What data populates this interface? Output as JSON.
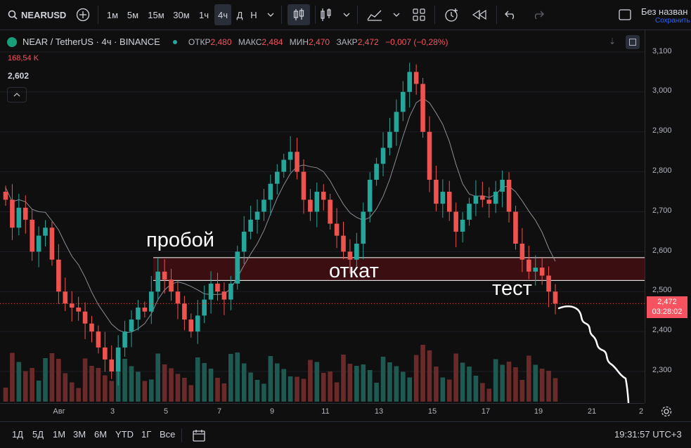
{
  "toolbar": {
    "symbol": "NEARUSD",
    "intervals": [
      "1м",
      "5м",
      "15м",
      "30м",
      "1ч",
      "4ч",
      "Д",
      "Н"
    ],
    "active_interval": "4ч",
    "layout_name": "Без назван",
    "save_label": "Сохранить"
  },
  "legend": {
    "title": "NEAR / TetherUS · 4ч · BINANCE",
    "open_label": "ОТКР",
    "open": "2,480",
    "high_label": "МАКС",
    "high": "2,484",
    "low_label": "МИН",
    "low": "2,470",
    "close_label": "ЗАКР",
    "close": "2,472",
    "change": "−0,007 (−0,28%)",
    "volume": "168,54 K",
    "ma_value": "2,602"
  },
  "price_axis": [
    "3,100",
    "3,000",
    "2,900",
    "2,800",
    "2,700",
    "2,600",
    "2,500",
    "2,400",
    "2,300"
  ],
  "price_tag": {
    "price": "2,472",
    "countdown": "03:28:02"
  },
  "time_axis": [
    "Авг",
    "3",
    "5",
    "7",
    "9",
    "11",
    "13",
    "15",
    "17",
    "19",
    "21",
    "2"
  ],
  "annotations": {
    "breakout": "пробой",
    "pullback": "откат",
    "test": "тест"
  },
  "bottombar": {
    "ranges": [
      "1Д",
      "5Д",
      "1М",
      "3М",
      "6М",
      "YTD",
      "1Г",
      "Все"
    ],
    "clock": "19:31:57 UTC+3"
  },
  "colors": {
    "up": "#26a69a",
    "down": "#ef5350",
    "background": "#0f0f0f"
  },
  "chart_data": {
    "type": "candlestick",
    "zone": {
      "top": 2.585,
      "bottom": 2.528
    },
    "close_prices": [
      2.73,
      2.66,
      2.71,
      2.68,
      2.6,
      2.64,
      2.66,
      2.58,
      2.5,
      2.47,
      2.46,
      2.45,
      2.42,
      2.4,
      2.36,
      2.33,
      2.3,
      2.36,
      2.4,
      2.43,
      2.46,
      2.45,
      2.5,
      2.55,
      2.53,
      2.5,
      2.47,
      2.43,
      2.4,
      2.44,
      2.48,
      2.52,
      2.5,
      2.48,
      2.52,
      2.6,
      2.65,
      2.68,
      2.7,
      2.73,
      2.77,
      2.8,
      2.83,
      2.85,
      2.8,
      2.73,
      2.7,
      2.75,
      2.73,
      2.67,
      2.64,
      2.6,
      2.58,
      2.62,
      2.7,
      2.78,
      2.82,
      2.86,
      2.9,
      2.95,
      3.0,
      3.05,
      3.02,
      2.9,
      2.78,
      2.72,
      2.75,
      2.7,
      2.65,
      2.68,
      2.72,
      2.74,
      2.73,
      2.72,
      2.75,
      2.78,
      2.7,
      2.62,
      2.58,
      2.55,
      2.56,
      2.54,
      2.5,
      2.47
    ]
  }
}
